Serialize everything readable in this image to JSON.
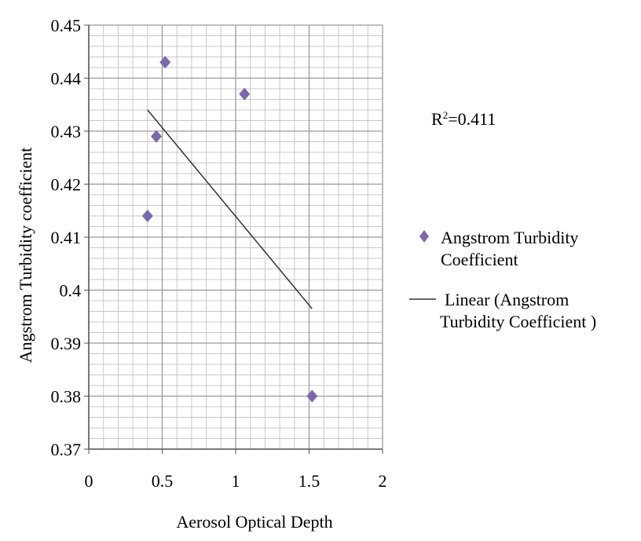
{
  "chart_data": {
    "type": "scatter",
    "xlabel": "Aerosol Optical Depth",
    "ylabel": "Angstrom Turbidity coefficient",
    "xlim": [
      0,
      2
    ],
    "ylim": [
      0.37,
      0.45
    ],
    "x_ticks": [
      "0",
      "0.5",
      "1",
      "1.5",
      "2"
    ],
    "x_tick_values": [
      0,
      0.5,
      1,
      1.5,
      2
    ],
    "y_ticks": [
      "0.37",
      "0.38",
      "0.39",
      "0.4",
      "0.41",
      "0.42",
      "0.43",
      "0.44",
      "0.45"
    ],
    "y_tick_values": [
      0.37,
      0.38,
      0.39,
      0.4,
      0.41,
      0.42,
      0.43,
      0.44,
      0.45
    ],
    "grid": true,
    "series": [
      {
        "name": "Angstrom Turbidity Coefficient",
        "marker": "diamond",
        "color": "#7b68ac",
        "points": [
          {
            "x": 0.4,
            "y": 0.414
          },
          {
            "x": 0.46,
            "y": 0.429
          },
          {
            "x": 0.52,
            "y": 0.443
          },
          {
            "x": 1.06,
            "y": 0.437
          },
          {
            "x": 1.52,
            "y": 0.38
          }
        ]
      }
    ],
    "trendline": {
      "name": "Linear (Angstrom Turbidity Coefficient )",
      "type": "linear",
      "color": "#333333",
      "start": {
        "x": 0.4,
        "y": 0.434
      },
      "end": {
        "x": 1.52,
        "y": 0.3965
      }
    },
    "annotation": {
      "prefix": "R",
      "sup": "2",
      "suffix": "=0.411"
    },
    "legend": {
      "placement": "right",
      "series_label_lines": [
        "Angstrom Turbidity",
        "Coefficient"
      ],
      "trend_label_lines": [
        "Linear (Angstrom",
        "Turbidity Coefficient )"
      ]
    }
  }
}
